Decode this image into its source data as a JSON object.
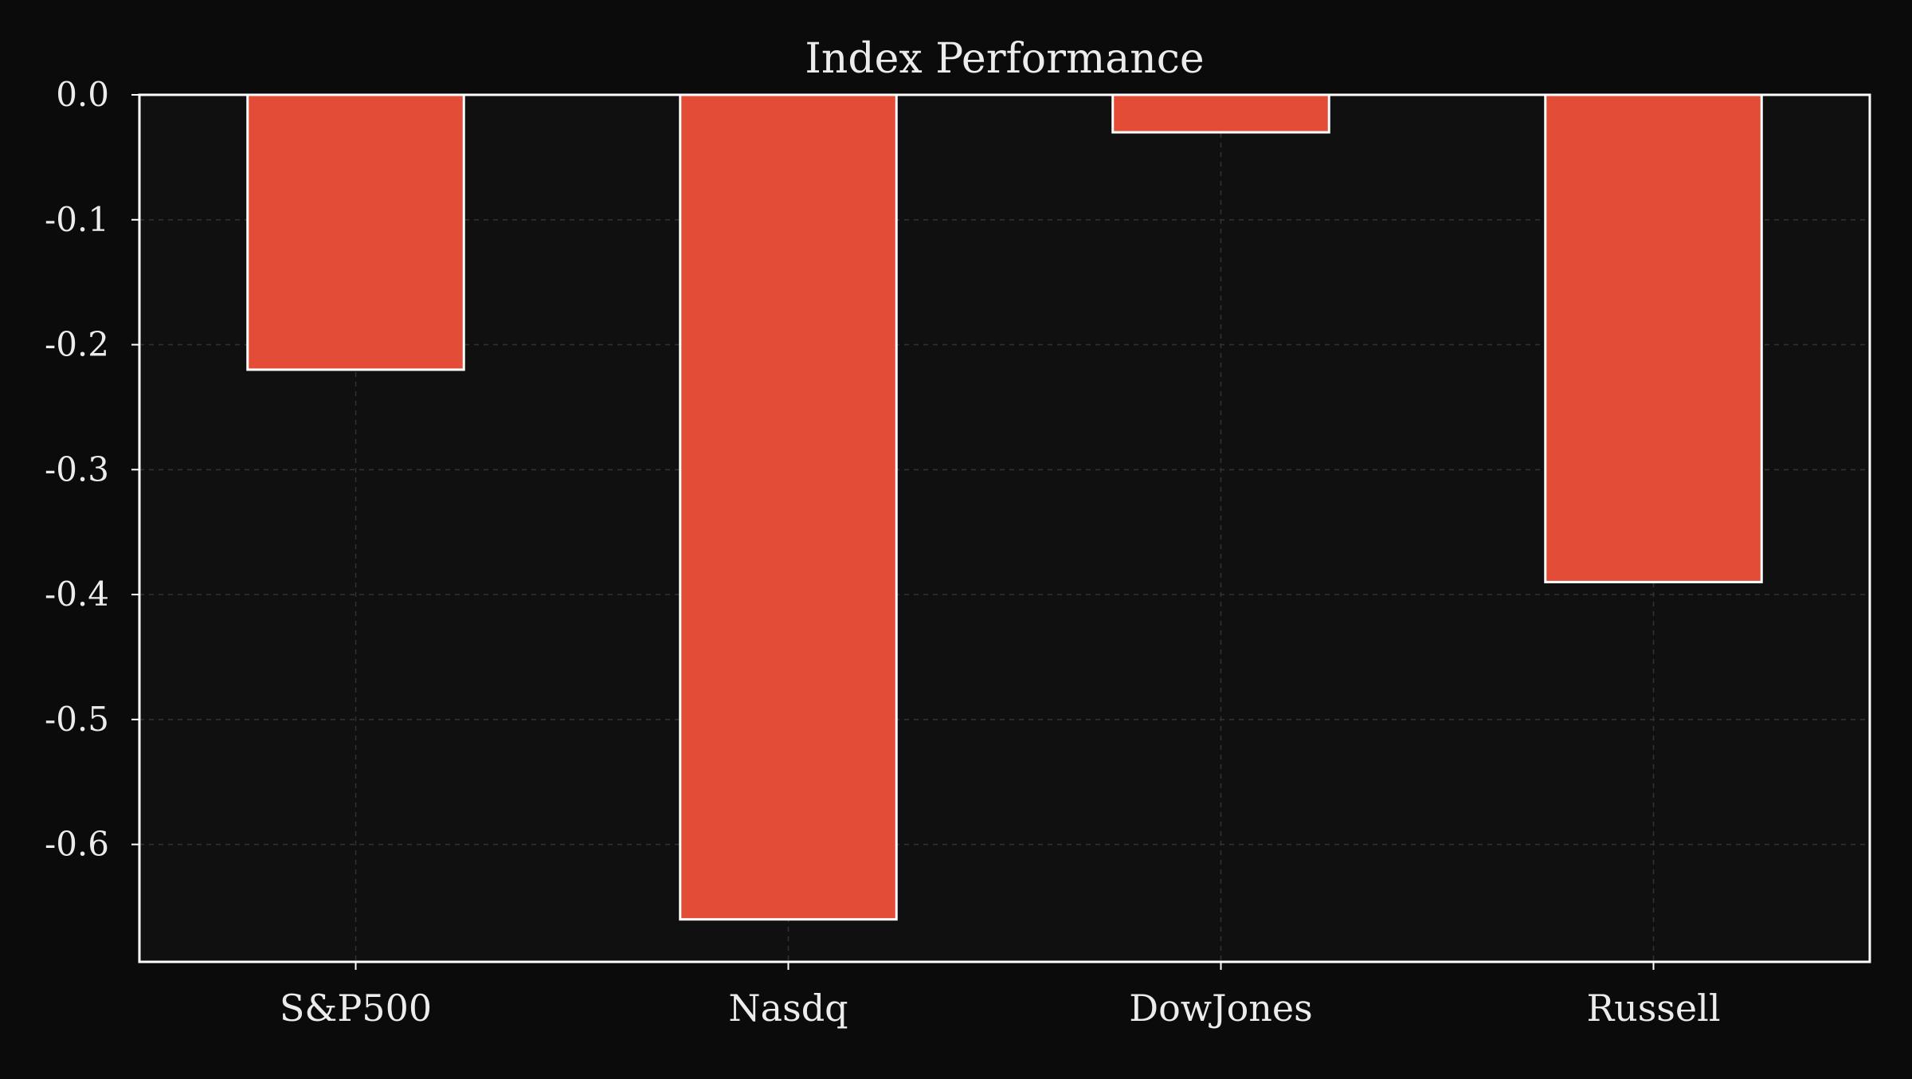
{
  "chart_data": {
    "type": "bar",
    "title": "Index Performance",
    "xlabel": "",
    "ylabel": "",
    "categories": [
      "S&P500",
      "Nasdq",
      "DowJones",
      "Russell"
    ],
    "values": [
      -0.22,
      -0.66,
      -0.03,
      -0.39
    ],
    "ylim": [
      -0.694,
      0.0
    ],
    "yticks": [
      0.0,
      -0.1,
      -0.2,
      -0.3,
      -0.4,
      -0.5,
      -0.6
    ],
    "ytick_labels": [
      "0.0",
      "-0.1",
      "-0.2",
      "-0.3",
      "-0.4",
      "-0.5",
      "-0.6"
    ],
    "grid": true,
    "legend": "none",
    "colors": {
      "background": "#0b0b0b",
      "plot_background": "#101010",
      "bar_fill": "#e34c36",
      "bar_edge": "#ffffff",
      "axes": "#ffffff",
      "grid": "#333333",
      "text": "#ececec"
    }
  }
}
